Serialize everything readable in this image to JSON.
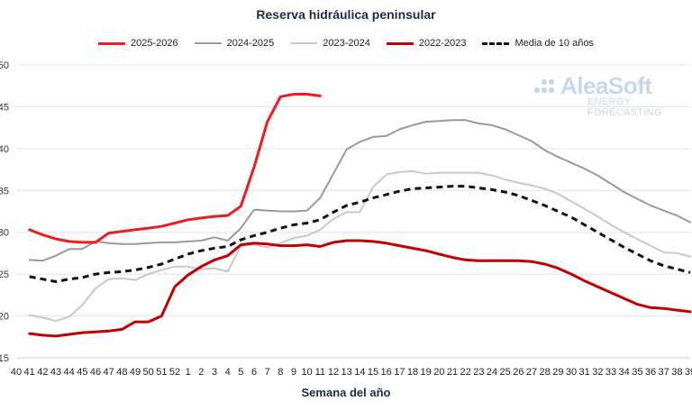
{
  "chart_data": {
    "type": "line",
    "title": "Reserva hidráulica peninsular",
    "xlabel": "Semana del año",
    "ylabel": "",
    "ylim": [
      15,
      50
    ],
    "yticks": [
      15,
      20,
      25,
      30,
      35,
      40,
      45,
      50
    ],
    "grid": true,
    "legend_position": "top",
    "categories": [
      "40",
      "41",
      "42",
      "43",
      "44",
      "45",
      "46",
      "47",
      "48",
      "49",
      "50",
      "51",
      "52",
      "1",
      "2",
      "3",
      "4",
      "5",
      "6",
      "7",
      "8",
      "9",
      "10",
      "11",
      "12",
      "13",
      "14",
      "15",
      "16",
      "17",
      "18",
      "19",
      "20",
      "21",
      "22",
      "23",
      "24",
      "25",
      "26",
      "27",
      "28",
      "29",
      "30",
      "31",
      "32",
      "33",
      "34",
      "35",
      "36",
      "37",
      "38",
      "39"
    ],
    "series": [
      {
        "name": "2025-2026",
        "color": "#ee1c1c",
        "dash": "solid",
        "width": 3,
        "values": [
          null,
          30.3,
          29.7,
          29.2,
          28.9,
          28.8,
          28.8,
          29.9,
          30.1,
          30.3,
          30.5,
          30.7,
          31.1,
          31.5,
          31.7,
          31.9,
          32.0,
          33.1,
          37.8,
          43.2,
          46.2,
          46.5,
          46.5,
          46.3,
          null,
          null,
          null,
          null,
          null,
          null,
          null,
          null,
          null,
          null,
          null,
          null,
          null,
          null,
          null,
          null,
          null,
          null,
          null,
          null,
          null,
          null,
          null,
          null,
          null,
          null,
          null,
          null
        ]
      },
      {
        "name": "2024-2025",
        "color": "#9a9a9a",
        "dash": "solid",
        "width": 2,
        "values": [
          null,
          26.7,
          26.6,
          27.2,
          28.0,
          28.0,
          28.9,
          28.7,
          28.6,
          28.6,
          28.7,
          28.8,
          28.8,
          28.9,
          29.0,
          29.4,
          29.0,
          30.5,
          32.7,
          32.6,
          32.5,
          32.5,
          32.6,
          34.1,
          37.0,
          39.9,
          40.8,
          41.4,
          41.5,
          42.3,
          42.8,
          43.2,
          43.3,
          43.4,
          43.4,
          43.0,
          42.8,
          42.3,
          41.6,
          40.9,
          39.8,
          39.0,
          38.3,
          37.6,
          36.8,
          35.8,
          34.8,
          34.0,
          33.2,
          32.6,
          32.0,
          31.2
        ]
      },
      {
        "name": "2023-2024",
        "color": "#c8c8c8",
        "dash": "solid",
        "width": 2,
        "values": [
          null,
          20.1,
          19.8,
          19.4,
          19.9,
          21.3,
          23.3,
          24.4,
          24.5,
          24.3,
          25.0,
          25.5,
          25.9,
          25.9,
          25.6,
          25.7,
          25.3,
          28.4,
          28.5,
          28.2,
          28.7,
          29.3,
          29.6,
          30.3,
          31.6,
          32.4,
          32.4,
          35.4,
          36.9,
          37.2,
          37.3,
          37.0,
          37.1,
          37.1,
          37.1,
          37.1,
          36.8,
          36.3,
          35.9,
          35.6,
          35.2,
          34.6,
          33.7,
          32.8,
          31.9,
          30.9,
          30.0,
          29.2,
          28.4,
          27.6,
          27.5,
          27.1
        ]
      },
      {
        "name": "2022-2023",
        "color": "#c00000",
        "dash": "solid",
        "width": 3,
        "values": [
          null,
          17.9,
          17.7,
          17.6,
          17.8,
          18.0,
          18.1,
          18.2,
          18.4,
          19.3,
          19.3,
          20.0,
          23.5,
          24.9,
          25.9,
          26.7,
          27.2,
          28.5,
          28.7,
          28.6,
          28.4,
          28.4,
          28.5,
          28.3,
          28.8,
          29.0,
          29.0,
          28.9,
          28.7,
          28.4,
          28.1,
          27.8,
          27.4,
          27.0,
          26.7,
          26.6,
          26.6,
          26.6,
          26.6,
          26.5,
          26.2,
          25.7,
          25.0,
          24.2,
          23.5,
          22.8,
          22.1,
          21.4,
          21.0,
          20.9,
          20.7,
          20.5
        ]
      },
      {
        "name": "Media de 10 años",
        "color": "#111111",
        "dash": "dashed",
        "width": 3,
        "values": [
          null,
          24.7,
          24.4,
          24.1,
          24.4,
          24.6,
          25.0,
          25.2,
          25.3,
          25.5,
          25.8,
          26.2,
          26.8,
          27.4,
          27.8,
          28.1,
          28.3,
          29.1,
          29.6,
          30.0,
          30.5,
          30.9,
          31.1,
          31.5,
          32.4,
          33.2,
          33.6,
          34.1,
          34.5,
          34.9,
          35.2,
          35.3,
          35.4,
          35.5,
          35.5,
          35.3,
          35.1,
          34.8,
          34.4,
          33.8,
          33.2,
          32.5,
          31.8,
          30.9,
          30.0,
          29.1,
          28.2,
          27.4,
          26.6,
          26.0,
          25.6,
          25.2
        ]
      }
    ]
  },
  "logo": {
    "name": "AleaSoft",
    "subtitle": "ENERGY FORECASTING",
    "color": "#c9d7ea"
  }
}
